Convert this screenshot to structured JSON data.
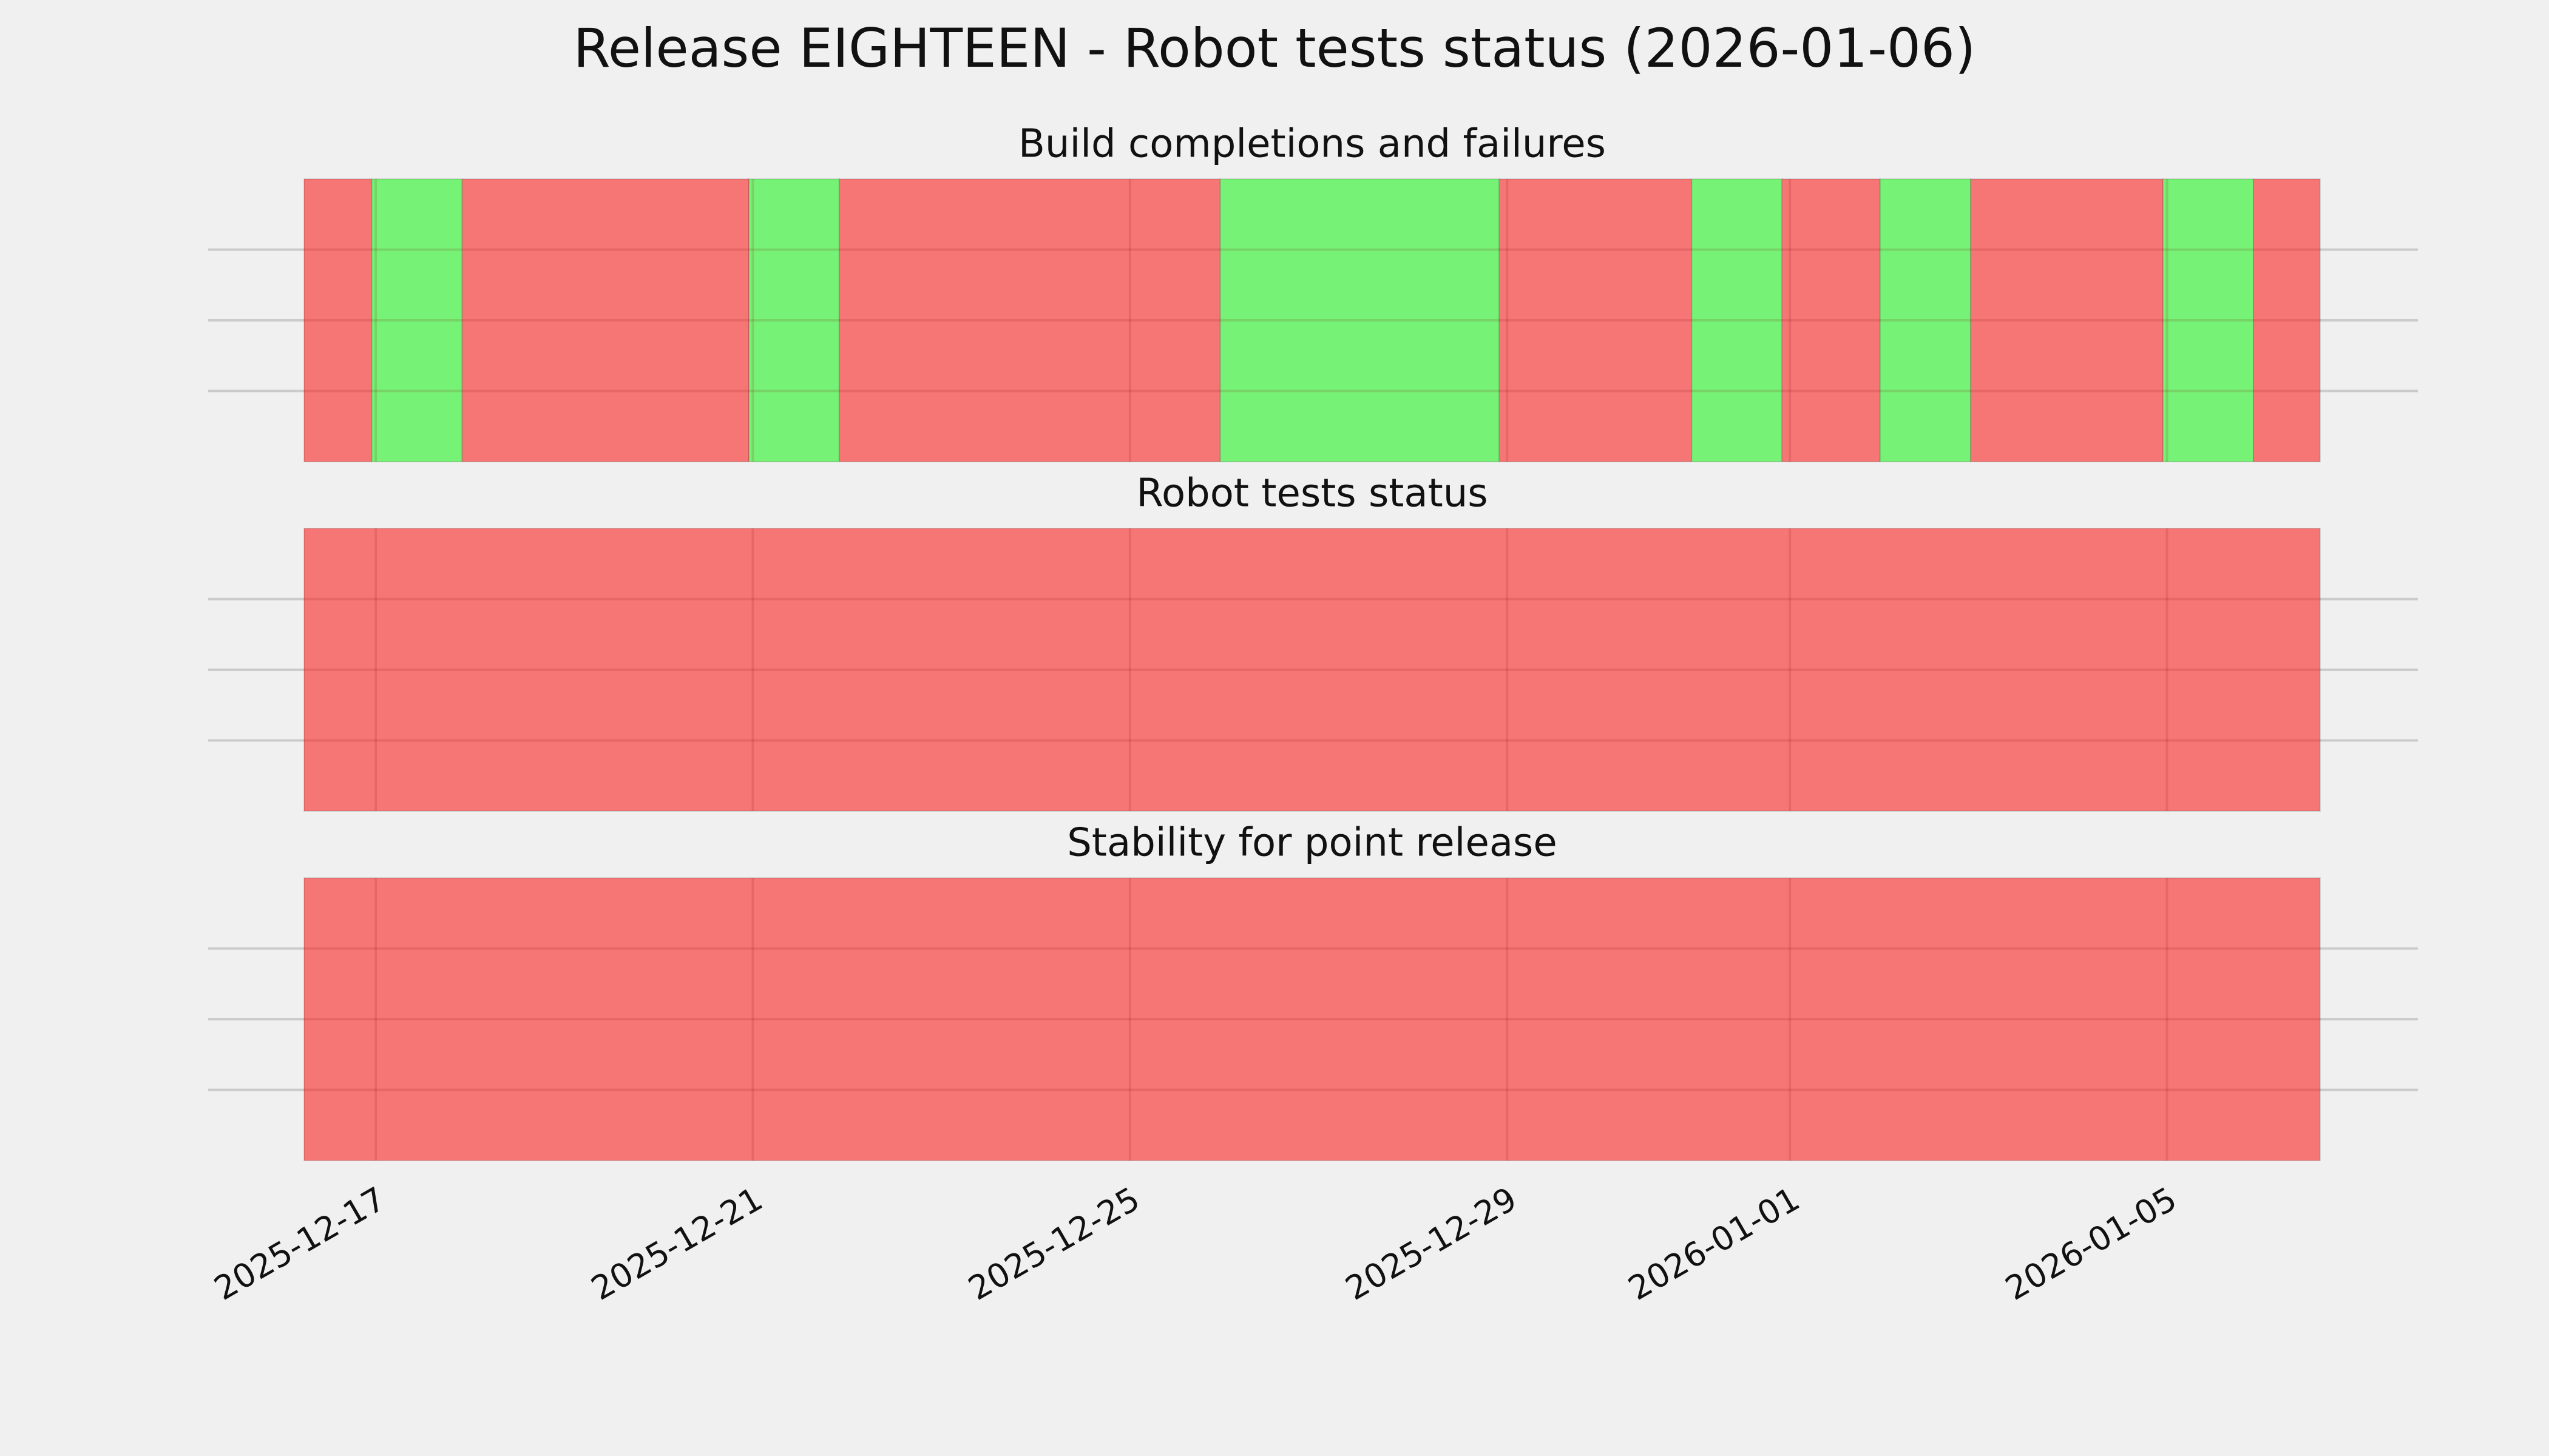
{
  "title": "Release EIGHTEEN - Robot tests status (2026-01-06)",
  "chart_data": [
    {
      "type": "timeline",
      "title": "Build completions and failures",
      "xlim": [
        "2025-12-16T05:45",
        "2026-01-06T15:00"
      ],
      "xticks": [
        "2025-12-17",
        "2025-12-21",
        "2025-12-25",
        "2025-12-29",
        "2026-01-01",
        "2026-01-05"
      ],
      "spans": [
        {
          "start": "2025-12-16T05:45",
          "end": "2025-12-16T23:00",
          "color": "#f67676"
        },
        {
          "start": "2025-12-16T23:00",
          "end": "2025-12-17T22:00",
          "color": "#76f276"
        },
        {
          "start": "2025-12-17T22:00",
          "end": "2025-12-20T23:00",
          "color": "#f67676"
        },
        {
          "start": "2025-12-20T23:00",
          "end": "2025-12-21T22:00",
          "color": "#76f276"
        },
        {
          "start": "2025-12-21T22:00",
          "end": "2025-12-25T23:00",
          "color": "#f67676"
        },
        {
          "start": "2025-12-25T23:00",
          "end": "2025-12-28T22:00",
          "color": "#76f276"
        },
        {
          "start": "2025-12-28T22:00",
          "end": "2025-12-30T23:00",
          "color": "#f67676"
        },
        {
          "start": "2025-12-30T23:00",
          "end": "2025-12-31T22:00",
          "color": "#76f276"
        },
        {
          "start": "2025-12-31T22:00",
          "end": "2026-01-01T23:00",
          "color": "#f67676"
        },
        {
          "start": "2026-01-01T23:00",
          "end": "2026-01-02T22:00",
          "color": "#76f276"
        },
        {
          "start": "2026-01-02T22:00",
          "end": "2026-01-04T23:00",
          "color": "#f67676"
        },
        {
          "start": "2026-01-04T23:00",
          "end": "2026-01-05T22:00",
          "color": "#76f276"
        },
        {
          "start": "2026-01-05T22:00",
          "end": "2026-01-06T15:00",
          "color": "#f67676"
        }
      ]
    },
    {
      "type": "timeline",
      "title": "Robot tests status",
      "xlim": [
        "2025-12-16T05:45",
        "2026-01-06T15:00"
      ],
      "xticks": [
        "2025-12-17",
        "2025-12-21",
        "2025-12-25",
        "2025-12-29",
        "2026-01-01",
        "2026-01-05"
      ],
      "spans": [
        {
          "start": "2025-12-16T05:45",
          "end": "2026-01-06T15:00",
          "color": "#f67676"
        }
      ]
    },
    {
      "type": "timeline",
      "title": "Stability for point release",
      "xlim": [
        "2025-12-16T05:45",
        "2026-01-06T15:00"
      ],
      "xticks": [
        "2025-12-17",
        "2025-12-21",
        "2025-12-25",
        "2025-12-29",
        "2026-01-01",
        "2026-01-05"
      ],
      "spans": [
        {
          "start": "2025-12-16T05:45",
          "end": "2026-01-06T15:00",
          "color": "#f67676"
        }
      ]
    }
  ]
}
